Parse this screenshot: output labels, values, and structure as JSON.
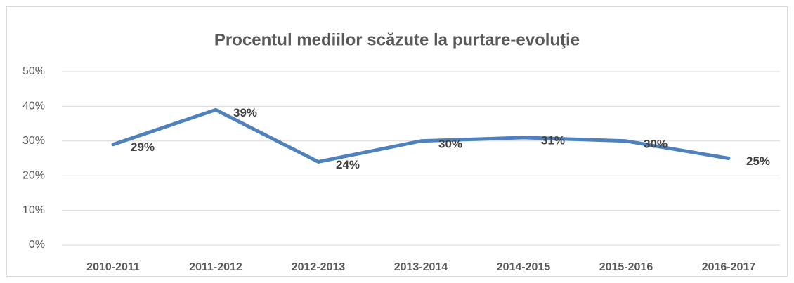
{
  "chart_data": {
    "type": "line",
    "title": "Procentul mediilor scăzute la purtare-evoluţie",
    "categories": [
      "2010-2011",
      "2011-2012",
      "2012-2013",
      "2013-2014",
      "2014-2015",
      "2015-2016",
      "2016-2017"
    ],
    "values": [
      29,
      39,
      24,
      30,
      31,
      30,
      25
    ],
    "value_labels": [
      "29%",
      "39%",
      "24%",
      "30%",
      "31%",
      "30%",
      "25%"
    ],
    "color": "#4f81bd",
    "ylim": [
      0,
      50
    ],
    "yticks": [
      {
        "value": 0,
        "label": "0%"
      },
      {
        "value": 10,
        "label": "10%"
      },
      {
        "value": 20,
        "label": "20%"
      },
      {
        "value": 30,
        "label": "30%"
      },
      {
        "value": 40,
        "label": "40%"
      },
      {
        "value": 50,
        "label": "50%"
      }
    ],
    "grid": true
  }
}
